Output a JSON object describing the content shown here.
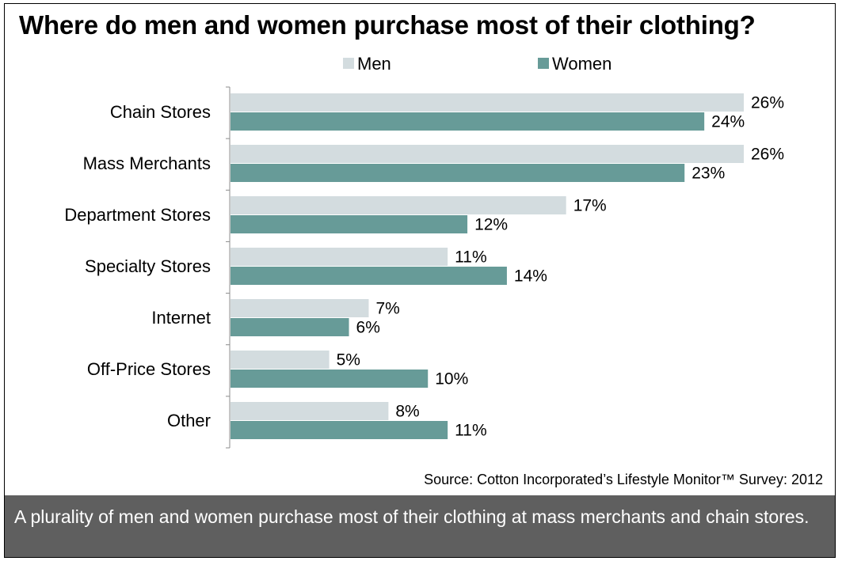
{
  "title": "Where do men and women purchase most of their clothing?",
  "source": "Source: Cotton Incorporated’s Lifestyle Monitor™ Survey: 2012",
  "footer_text": "A plurality of men and women purchase most of their clothing at mass merchants and chain stores.",
  "colors": {
    "men": "#d3dcdf",
    "women": "#679b98"
  },
  "chart_data": {
    "type": "bar",
    "orientation": "horizontal",
    "title": "Where do men and women purchase most of their clothing?",
    "categories": [
      "Chain Stores",
      "Mass Merchants",
      "Department Stores",
      "Specialty Stores",
      "Internet",
      "Off-Price Stores",
      "Other"
    ],
    "series": [
      {
        "name": "Men",
        "values": [
          26,
          26,
          17,
          11,
          7,
          5,
          8
        ],
        "labels": [
          "26%",
          "26%",
          "17%",
          "11%",
          "7%",
          "5%",
          "8%"
        ]
      },
      {
        "name": "Women",
        "values": [
          24,
          23,
          12,
          14,
          6,
          10,
          11
        ],
        "labels": [
          "24%",
          "23%",
          "12%",
          "14%",
          "6%",
          "10%",
          "11%"
        ]
      }
    ],
    "xlim": [
      0,
      26
    ],
    "legend": "top",
    "grid": false
  }
}
